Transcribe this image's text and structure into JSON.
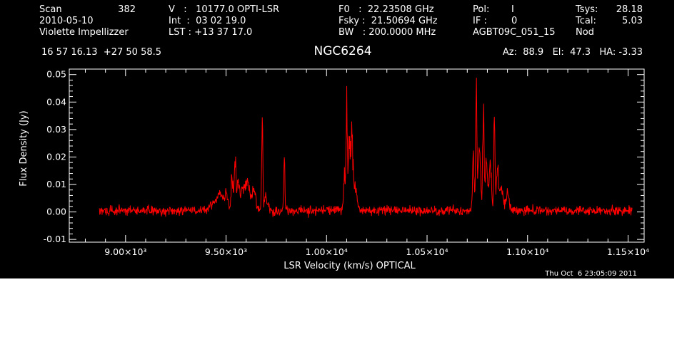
{
  "header": {
    "scan_label": "Scan",
    "scan_value": "382",
    "date": "2010-05-10",
    "observer": "Violette Impellizzer",
    "v_line": "V   :   10177.0 OPTI-LSR",
    "int_line": "Int  :  03 02 19.0",
    "lst_line": "LST : +13 37 17.0",
    "f0_line": "F0   :  22.23508 GHz",
    "fsky_line": "Fsky :  21.50694 GHz",
    "bw_line": "BW   : 200.0000 MHz",
    "pol_label": "Pol:",
    "pol_value": "I",
    "if_label": "IF :",
    "if_value": "0",
    "project": "AGBT09C_051_15",
    "tsys_label": "Tsys:",
    "tsys_value": "28.18",
    "tcal_label": "Tcal:",
    "tcal_value": "5.03",
    "mode": "Nod",
    "coords": "16 57 16.13  +27 50 58.5",
    "object": "NGC6264",
    "az_el_ha": "Az:  88.9   El:  47.3   HA: -3.33"
  },
  "timestamp": "Thu Oct  6 23:05:09 2011",
  "colors": {
    "background": "#000000",
    "axes": "#ffffff",
    "spectrum": "#ff0000"
  },
  "chart_data": {
    "type": "line",
    "title": "NGC6264",
    "xlabel": "LSR Velocity (km/s) OPTICAL",
    "ylabel": "Flux Density (Jy)",
    "xlim": [
      8720,
      11580
    ],
    "ylim": [
      -0.011,
      0.052
    ],
    "xticks": [
      9000,
      9500,
      10000,
      10500,
      11000,
      11500
    ],
    "xtick_labels": [
      "9.00×10³",
      "9.50×10³",
      "1.00×10⁴",
      "1.05×10⁴",
      "1.10×10⁴",
      "1.15×10⁴"
    ],
    "yticks": [
      -0.01,
      0.0,
      0.01,
      0.02,
      0.03,
      0.04,
      0.05
    ],
    "ytick_labels": [
      "-0.01",
      "0.00",
      "0.01",
      "0.02",
      "0.03",
      "0.04",
      "0.05"
    ],
    "grid": false,
    "series": [
      {
        "color": "#ff0000",
        "x_range": [
          8870,
          11520
        ],
        "noise_rms": 0.0012,
        "baseline": 0.0005,
        "features": [
          {
            "x": 9440,
            "width": 20,
            "amp": 0.003
          },
          {
            "x": 9470,
            "width": 14,
            "amp": 0.005
          },
          {
            "x": 9500,
            "width": 10,
            "amp": 0.006
          },
          {
            "x": 9530,
            "width": 5,
            "amp": 0.013
          },
          {
            "x": 9545,
            "width": 4,
            "amp": 0.018
          },
          {
            "x": 9560,
            "width": 6,
            "amp": 0.01
          },
          {
            "x": 9585,
            "width": 12,
            "amp": 0.008
          },
          {
            "x": 9610,
            "width": 10,
            "amp": 0.009
          },
          {
            "x": 9640,
            "width": 8,
            "amp": 0.008
          },
          {
            "x": 9680,
            "width": 3,
            "amp": 0.032
          },
          {
            "x": 9700,
            "width": 10,
            "amp": 0.004
          },
          {
            "x": 9790,
            "width": 3,
            "amp": 0.018
          },
          {
            "x": 10090,
            "width": 5,
            "amp": 0.012
          },
          {
            "x": 10100,
            "width": 3,
            "amp": 0.038
          },
          {
            "x": 10112,
            "width": 5,
            "amp": 0.02
          },
          {
            "x": 10125,
            "width": 6,
            "amp": 0.025
          },
          {
            "x": 10140,
            "width": 10,
            "amp": 0.008
          },
          {
            "x": 10730,
            "width": 4,
            "amp": 0.02
          },
          {
            "x": 10745,
            "width": 3,
            "amp": 0.044
          },
          {
            "x": 10760,
            "width": 6,
            "amp": 0.022
          },
          {
            "x": 10780,
            "width": 3,
            "amp": 0.041
          },
          {
            "x": 10795,
            "width": 6,
            "amp": 0.02
          },
          {
            "x": 10815,
            "width": 6,
            "amp": 0.016
          },
          {
            "x": 10835,
            "width": 3,
            "amp": 0.037
          },
          {
            "x": 10850,
            "width": 6,
            "amp": 0.014
          },
          {
            "x": 10870,
            "width": 8,
            "amp": 0.008
          },
          {
            "x": 10900,
            "width": 8,
            "amp": 0.006
          }
        ]
      }
    ]
  }
}
